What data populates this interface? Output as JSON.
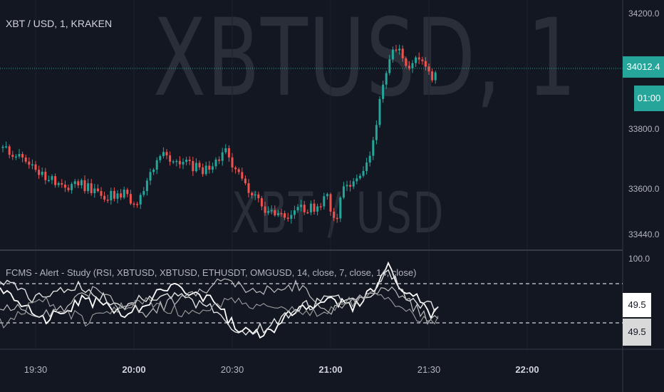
{
  "chart": {
    "title": "XBT / USD, 1, KRAKEN",
    "watermark_main": "XBTUSD, 1",
    "watermark_sub": "XBT / USD",
    "price_axis": [
      "34200.0",
      "33800.0",
      "33600.0",
      "33440.0"
    ],
    "current_price": "34012.4",
    "countdown": "01:00",
    "colors": {
      "up": "#26a69a",
      "down": "#ef5350",
      "background": "#131722",
      "rsi": "#e0e0e0"
    }
  },
  "study": {
    "title": "FCMS - Alert - Study (RSI, XBTUSD, XBTUSD, ETHUSDT, OMGUSD, 14, close, 7, close, 14, close)",
    "axis_top": "100.0",
    "value_1": "49.5",
    "value_2": "49.5"
  },
  "time_axis": {
    "labels": [
      {
        "text": "19:30",
        "bold": false
      },
      {
        "text": "20:00",
        "bold": true
      },
      {
        "text": "20:30",
        "bold": false
      },
      {
        "text": "21:00",
        "bold": true
      },
      {
        "text": "21:30",
        "bold": false
      },
      {
        "text": "22:00",
        "bold": true
      }
    ]
  }
}
